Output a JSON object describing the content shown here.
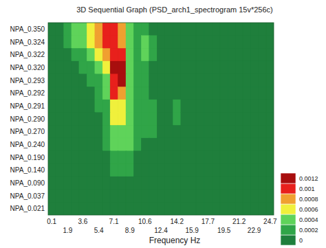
{
  "chart_data": {
    "type": "heatmap",
    "title": "3D Sequential Graph (PSD_arch1_spectrogram 15v*256c)",
    "x_label": "Frequency Hz",
    "categories": [
      "NPA_0.350",
      "NPA_0.324",
      "NPA_0.322",
      "NPA_0.320",
      "NPA_0.293",
      "NPA_0.292",
      "NPA_0.291",
      "NPA_0.290",
      "NPA_0.270",
      "NPA_0.240",
      "NPA_0.190",
      "NPA_0.140",
      "NPA_0.090",
      "NPA_0.037",
      "NPA_0.021"
    ],
    "x": [
      0.1,
      0.98,
      1.9,
      2.75,
      3.6,
      4.5,
      5.4,
      6.25,
      7.1,
      8.0,
      8.9,
      9.75,
      10.6,
      11.5,
      12.4,
      13.3,
      14.2,
      15.05,
      15.9,
      16.8,
      17.7,
      18.6,
      19.5,
      20.35,
      21.2,
      22.05,
      22.9,
      23.8,
      24.7
    ],
    "z": [
      [
        0,
        5e-05,
        0.00025,
        0.00045,
        0.0005,
        0.00065,
        0.0009,
        0.00105,
        0.0011,
        0.00095,
        0.0005,
        0.0003,
        0.00025,
        0.0001,
        0,
        0,
        0,
        0,
        0,
        0,
        0,
        0,
        0,
        0,
        0,
        0,
        0,
        0,
        0
      ],
      [
        0,
        3e-05,
        0.00022,
        0.0004,
        0.00048,
        0.0006,
        0.00085,
        0.001,
        0.00105,
        0.0009,
        0.00045,
        0.0003,
        0.00045,
        0.0002,
        0,
        0,
        0,
        0,
        0,
        0,
        0,
        0,
        0,
        0,
        0,
        0,
        0,
        0,
        0
      ],
      [
        0,
        0,
        0.00012,
        0.00025,
        0.00035,
        0.00045,
        0.00062,
        0.0008,
        0.00105,
        0.0011,
        0.0005,
        0.0003,
        0.00045,
        0.0002,
        0,
        0,
        0,
        0,
        0,
        0,
        0,
        0,
        0,
        0,
        0,
        0,
        0,
        0,
        0
      ],
      [
        0,
        0,
        5e-05,
        0.00015,
        0.00025,
        0.0003,
        0.00042,
        0.00065,
        0.0012,
        0.00125,
        0.00055,
        0.00025,
        0.0003,
        0.00015,
        0,
        0,
        0,
        0,
        0,
        0,
        0,
        0,
        0,
        0,
        0,
        0,
        0,
        0,
        0
      ],
      [
        0,
        0,
        0,
        8e-05,
        0.00015,
        0.0002,
        0.0003,
        0.00055,
        0.00115,
        0.0012,
        0.0005,
        0.00025,
        0.0002,
        0.0001,
        0,
        0,
        0,
        0,
        0,
        0,
        0,
        0,
        0,
        0,
        0,
        0,
        0,
        0,
        0
      ],
      [
        0,
        0,
        0,
        5e-05,
        0.0001,
        0.00015,
        0.00025,
        0.00045,
        0.001,
        0.00095,
        0.00045,
        0.00025,
        0.00022,
        0.00012,
        0,
        0,
        0,
        0,
        0,
        0,
        0,
        0,
        0,
        0,
        0,
        0,
        0,
        0,
        0
      ],
      [
        0,
        0,
        0,
        0,
        5e-05,
        0.0001,
        0.0002,
        0.00035,
        0.00075,
        0.0007,
        0.0004,
        0.00025,
        0.00025,
        0.00025,
        0.0001,
        5e-05,
        0.00025,
        5e-05,
        0,
        0,
        0,
        0,
        0,
        0,
        0,
        0,
        0,
        0,
        0
      ],
      [
        0,
        0,
        0,
        0,
        0,
        5e-05,
        0.00015,
        0.0003,
        0.00065,
        0.00062,
        0.0004,
        0.00022,
        0.0002,
        0.00028,
        0.00012,
        5e-05,
        0.00022,
        0,
        0,
        0,
        0,
        0,
        0,
        0,
        0,
        0,
        0,
        0,
        0
      ],
      [
        0,
        0,
        0,
        0,
        0,
        3e-05,
        0.00012,
        0.00025,
        0.00055,
        0.00055,
        0.00042,
        0.00022,
        0.0002,
        0.00025,
        0.0001,
        0,
        0,
        0,
        0,
        0,
        0,
        0,
        0,
        0,
        0,
        0,
        0,
        0,
        0
      ],
      [
        0,
        0,
        0,
        0,
        0,
        0,
        0.0001,
        0.0002,
        0.00045,
        0.00048,
        0.0004,
        0.00022,
        0.0001,
        0.0001,
        0,
        0,
        0,
        0,
        0,
        0,
        0,
        0,
        0,
        0,
        0,
        0,
        0,
        0,
        0
      ],
      [
        0,
        0,
        0,
        0,
        0,
        0,
        5e-05,
        0.00015,
        0.0003,
        0.00035,
        0.00032,
        0.00015,
        5e-05,
        0,
        0,
        0,
        0,
        0,
        0,
        0,
        0,
        0,
        0,
        0,
        0,
        0,
        0,
        0,
        0
      ],
      [
        0,
        0,
        0,
        0,
        0,
        0,
        0,
        0.0001,
        0.00022,
        0.00025,
        0.00025,
        0.0001,
        0,
        0,
        0,
        0,
        0,
        0,
        0,
        0,
        0,
        0,
        0,
        0,
        0,
        0,
        0,
        0,
        0
      ],
      [
        0,
        0,
        0,
        0,
        0,
        0,
        0,
        5e-05,
        0.0001,
        0.00012,
        0.0001,
        5e-05,
        0,
        0,
        0,
        0,
        0,
        0,
        0,
        0,
        0,
        0,
        0,
        0,
        0,
        0,
        0,
        0,
        0
      ],
      [
        0,
        0,
        0,
        0,
        0,
        0,
        0,
        0,
        5e-05,
        5e-05,
        0,
        0,
        0,
        0,
        0,
        0,
        0,
        0,
        0,
        0,
        0,
        0,
        0,
        0,
        0,
        0,
        0,
        0,
        0
      ],
      [
        0,
        0,
        0,
        0,
        0,
        0,
        0,
        0,
        0,
        0,
        0,
        0,
        0,
        0,
        0,
        0,
        0,
        0,
        0,
        0,
        0,
        0,
        0,
        0,
        0,
        0,
        0,
        0,
        0
      ]
    ],
    "xlim": [
      -0.3,
      25.1
    ],
    "xticks": [
      0.1,
      1.9,
      3.6,
      5.4,
      7.1,
      8.9,
      10.6,
      12.4,
      14.2,
      15.9,
      17.7,
      19.5,
      21.2,
      22.9,
      24.7
    ],
    "colorbar": {
      "range": [
        0,
        0.0014
      ],
      "ticks": [
        0,
        0.0002,
        0.0004,
        0.0006,
        0.0008,
        0.001,
        0.0012
      ],
      "colors": [
        "#1f7f3c",
        "#30a548",
        "#5fd35a",
        "#f0f03c",
        "#f0a030",
        "#e8201c",
        "#a80e0e"
      ]
    }
  }
}
